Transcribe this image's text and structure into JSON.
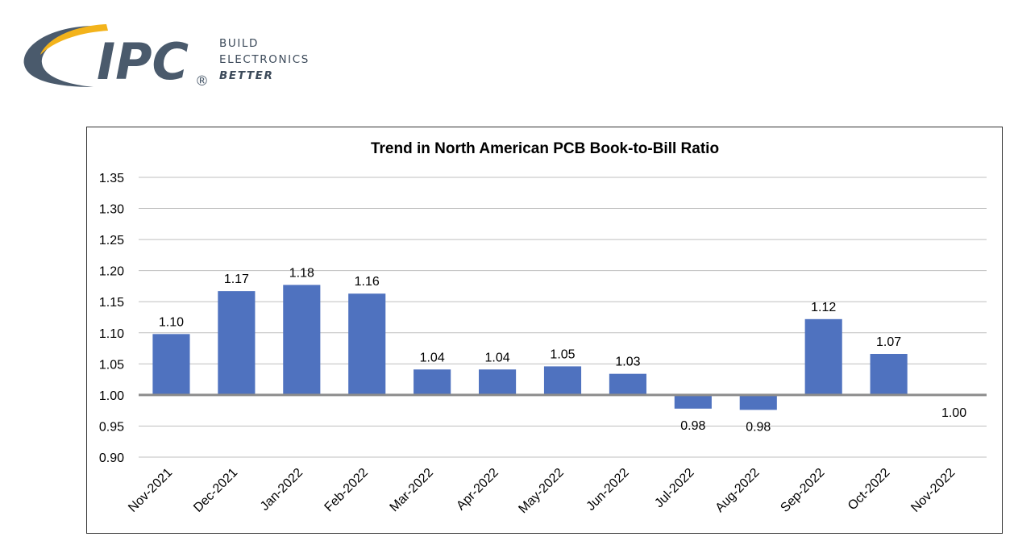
{
  "logo": {
    "wordmark": "IPC",
    "registered": "®",
    "tagline": [
      "BUILD",
      "ELECTRONICS",
      "BETTER"
    ],
    "colors": {
      "navy": "#4a5a6c",
      "gold": "#f3b31b"
    }
  },
  "chart_data": {
    "type": "bar",
    "title": "Trend in North American PCB Book-to-Bill Ratio",
    "xlabel": "",
    "ylabel": "",
    "categories": [
      "Nov-2021",
      "Dec-2021",
      "Jan-2022",
      "Feb-2022",
      "Mar-2022",
      "Apr-2022",
      "May-2022",
      "Jun-2022",
      "Jul-2022",
      "Aug-2022",
      "Sep-2022",
      "Oct-2022",
      "Nov-2022"
    ],
    "values": [
      1.098,
      1.167,
      1.177,
      1.163,
      1.041,
      1.041,
      1.046,
      1.034,
      0.978,
      0.976,
      1.122,
      1.066,
      1.0
    ],
    "data_labels": [
      "1.10",
      "1.17",
      "1.18",
      "1.16",
      "1.04",
      "1.04",
      "1.05",
      "1.03",
      "0.98",
      "0.98",
      "1.12",
      "1.07",
      "1.00"
    ],
    "baseline": 1.0,
    "ylim": [
      0.9,
      1.35
    ],
    "yticks": [
      "0.90",
      "0.95",
      "1.00",
      "1.05",
      "1.10",
      "1.15",
      "1.20",
      "1.25",
      "1.30",
      "1.35"
    ],
    "grid": true,
    "legend": "none",
    "bar_color": "#4f72bf"
  }
}
